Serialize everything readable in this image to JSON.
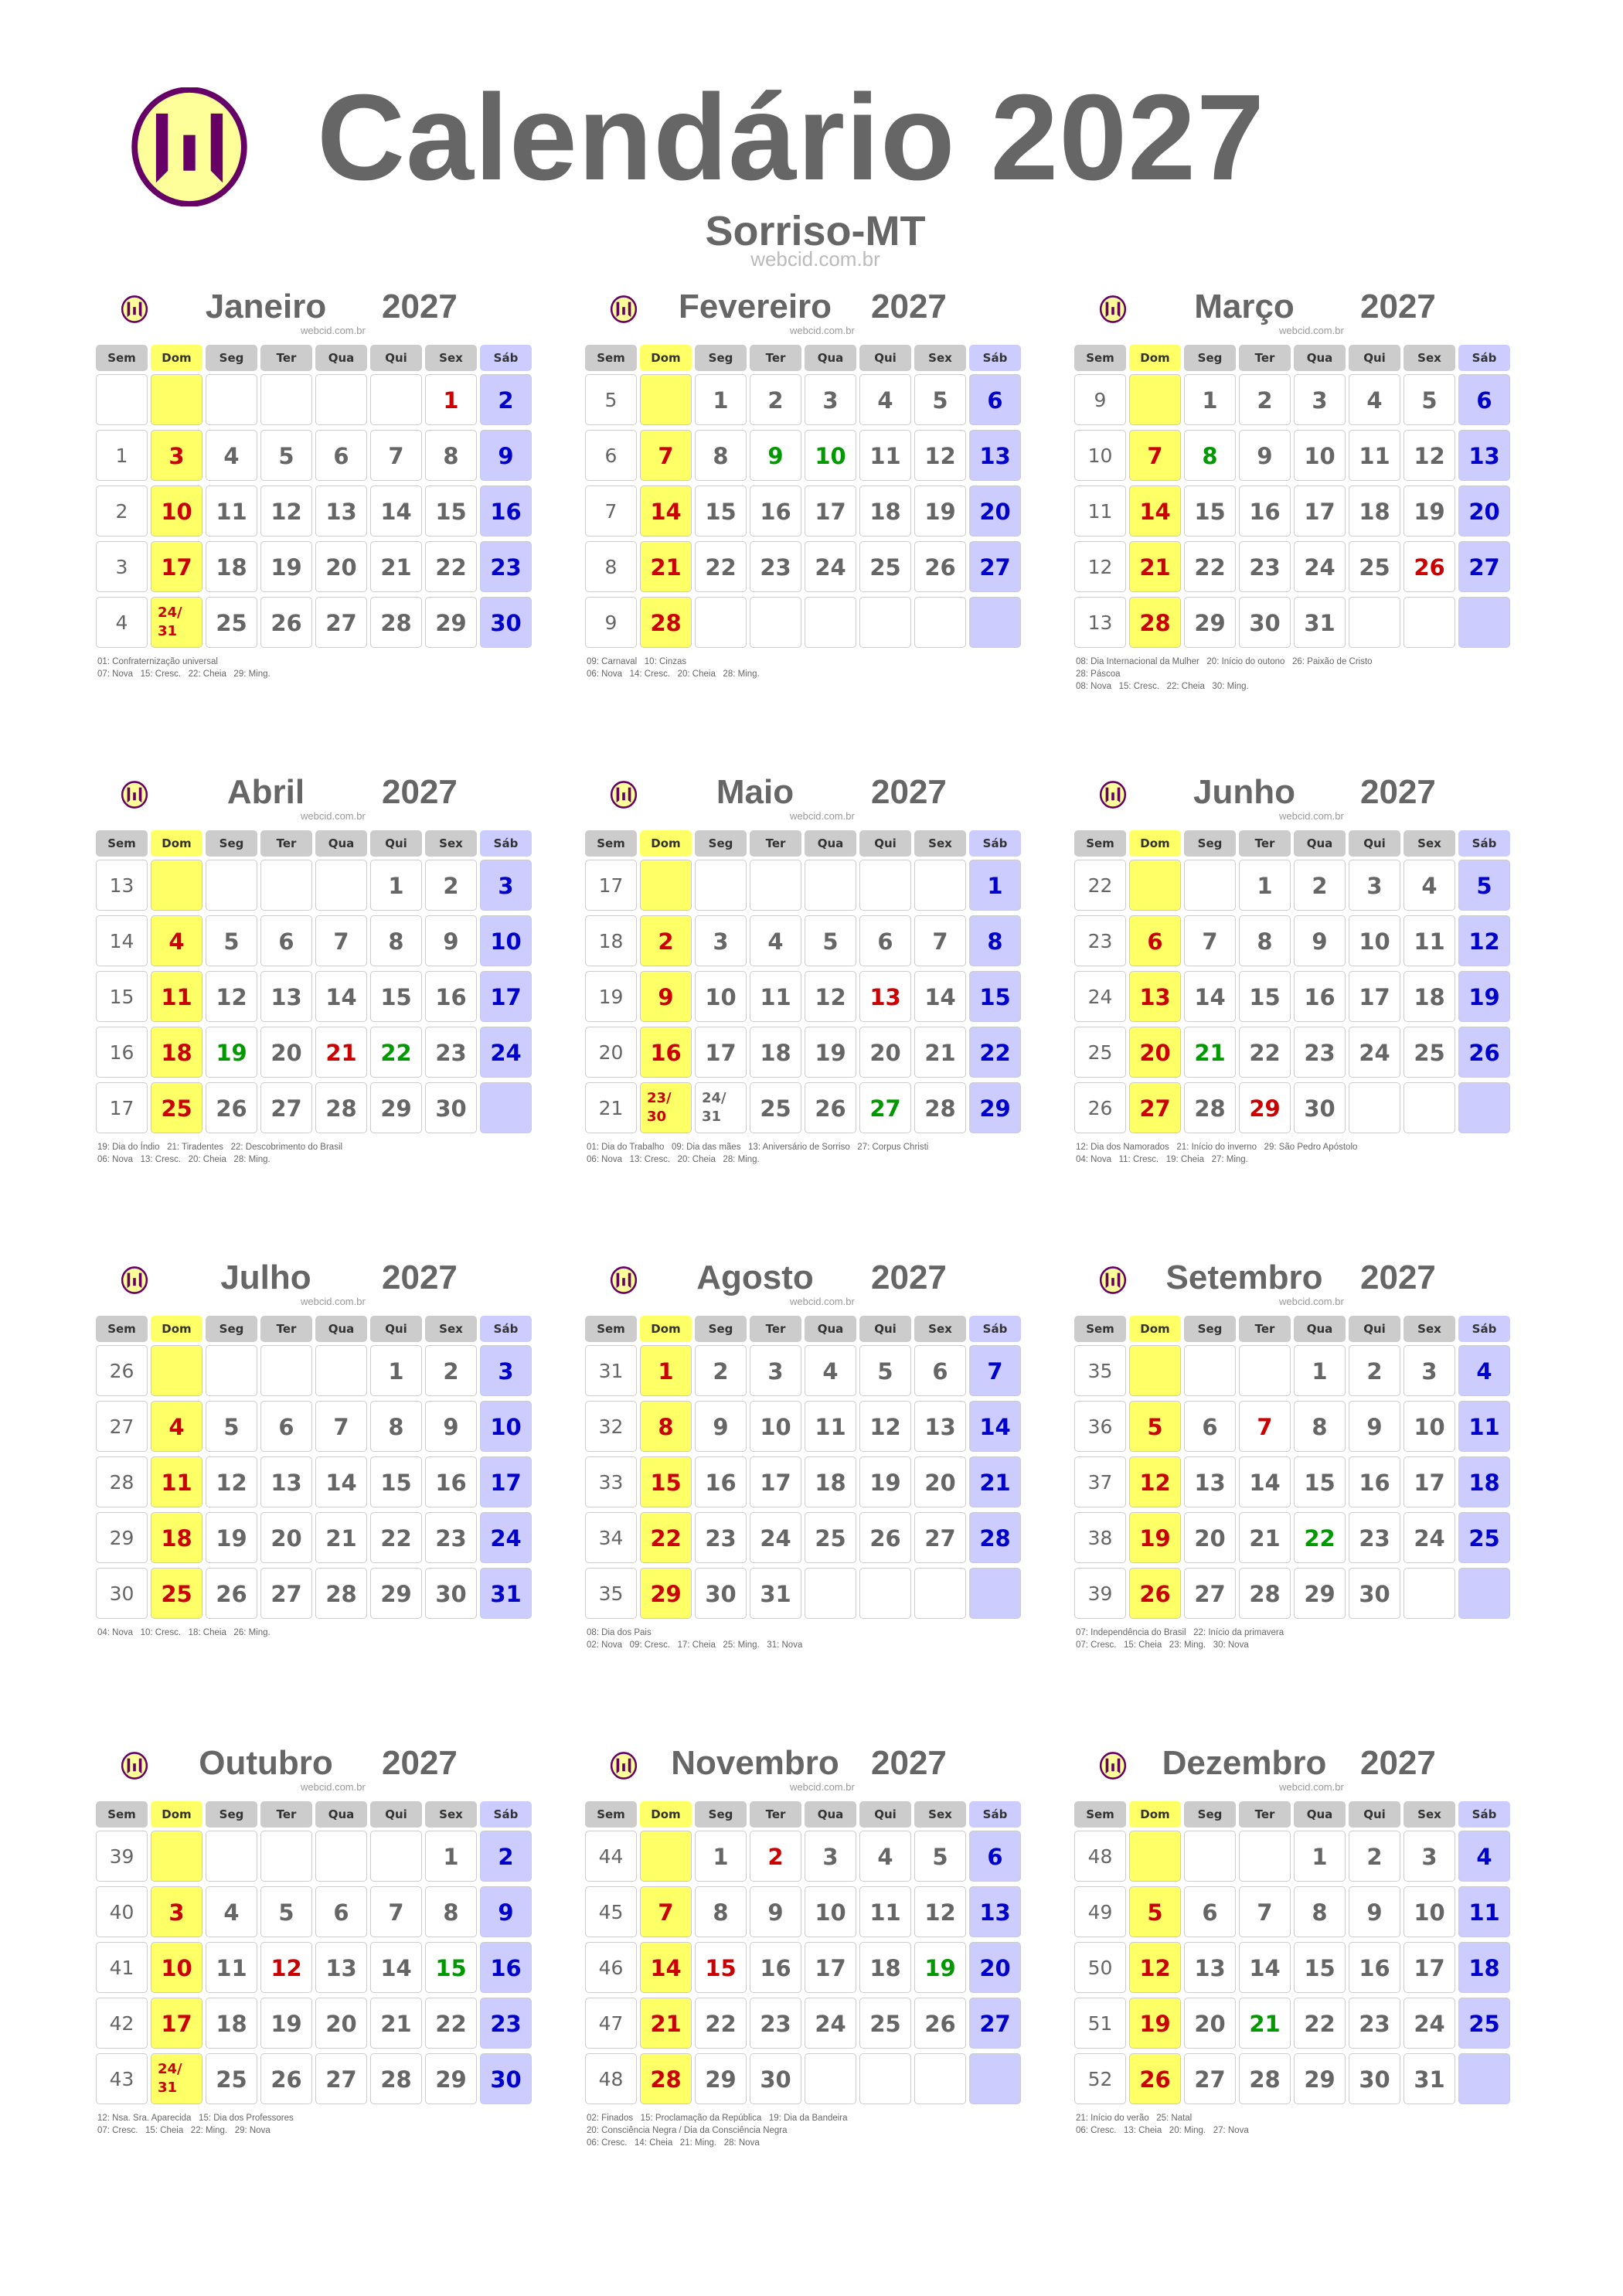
{
  "header": {
    "title": "Calendário 2027",
    "city": "Sorriso-MT",
    "site": "webcid.com.br",
    "logo": "webcid-logo-icon"
  },
  "weekday_headers": [
    "Sem",
    "Dom",
    "Seg",
    "Ter",
    "Qua",
    "Qui",
    "Sex",
    "Sáb"
  ],
  "year": "2027",
  "month_site": "webcid.com.br",
  "colors": {
    "text": "#666666",
    "holiday": "#cc0000",
    "optional": "#009900",
    "saturday": "#0000cc",
    "sunday_bg": "#ffff66",
    "saturday_bg": "#ccccff",
    "header_bg": "#cccccc",
    "logo_fill": "#ffff99",
    "logo_purple": "#660066"
  },
  "months": [
    {
      "name": "Janeiro",
      "red": [
        "1"
      ],
      "green": [],
      "weeks": [
        {
          "w": "",
          "d": [
            "",
            "",
            "",
            "",
            "",
            "1",
            "2"
          ]
        },
        {
          "w": "1",
          "d": [
            "3",
            "4",
            "5",
            "6",
            "7",
            "8",
            "9"
          ]
        },
        {
          "w": "2",
          "d": [
            "10",
            "11",
            "12",
            "13",
            "14",
            "15",
            "16"
          ]
        },
        {
          "w": "3",
          "d": [
            "17",
            "18",
            "19",
            "20",
            "21",
            "22",
            "23"
          ]
        },
        {
          "w": "4",
          "d": [
            "24/31",
            "25",
            "26",
            "27",
            "28",
            "29",
            "30"
          ]
        }
      ],
      "notes": [
        "01: Confraternização universal",
        "07: Nova   15: Cresc.   22: Cheia   29: Ming."
      ]
    },
    {
      "name": "Fevereiro",
      "red": [],
      "green": [
        "9",
        "10"
      ],
      "weeks": [
        {
          "w": "5",
          "d": [
            "",
            "1",
            "2",
            "3",
            "4",
            "5",
            "6"
          ]
        },
        {
          "w": "6",
          "d": [
            "7",
            "8",
            "9",
            "10",
            "11",
            "12",
            "13"
          ]
        },
        {
          "w": "7",
          "d": [
            "14",
            "15",
            "16",
            "17",
            "18",
            "19",
            "20"
          ]
        },
        {
          "w": "8",
          "d": [
            "21",
            "22",
            "23",
            "24",
            "25",
            "26",
            "27"
          ]
        },
        {
          "w": "9",
          "d": [
            "28",
            "",
            "",
            "",
            "",
            "",
            ""
          ]
        }
      ],
      "notes": [
        "09: Carnaval   10: Cinzas",
        "06: Nova   14: Cresc.   20: Cheia   28: Ming."
      ]
    },
    {
      "name": "Março",
      "red": [
        "26"
      ],
      "green": [
        "8"
      ],
      "weeks": [
        {
          "w": "9",
          "d": [
            "",
            "1",
            "2",
            "3",
            "4",
            "5",
            "6"
          ]
        },
        {
          "w": "10",
          "d": [
            "7",
            "8",
            "9",
            "10",
            "11",
            "12",
            "13"
          ]
        },
        {
          "w": "11",
          "d": [
            "14",
            "15",
            "16",
            "17",
            "18",
            "19",
            "20"
          ]
        },
        {
          "w": "12",
          "d": [
            "21",
            "22",
            "23",
            "24",
            "25",
            "26",
            "27"
          ]
        },
        {
          "w": "13",
          "d": [
            "28",
            "29",
            "30",
            "31",
            "",
            "",
            ""
          ]
        }
      ],
      "notes": [
        "08: Dia Internacional da Mulher   20: Início do outono   26: Paixão de Cristo",
        "28: Páscoa",
        "08: Nova   15: Cresc.   22: Cheia   30: Ming."
      ]
    },
    {
      "name": "Abril",
      "red": [
        "21"
      ],
      "green": [
        "19",
        "22"
      ],
      "weeks": [
        {
          "w": "13",
          "d": [
            "",
            "",
            "",
            "",
            "1",
            "2",
            "3"
          ]
        },
        {
          "w": "14",
          "d": [
            "4",
            "5",
            "6",
            "7",
            "8",
            "9",
            "10"
          ]
        },
        {
          "w": "15",
          "d": [
            "11",
            "12",
            "13",
            "14",
            "15",
            "16",
            "17"
          ]
        },
        {
          "w": "16",
          "d": [
            "18",
            "19",
            "20",
            "21",
            "22",
            "23",
            "24"
          ]
        },
        {
          "w": "17",
          "d": [
            "25",
            "26",
            "27",
            "28",
            "29",
            "30",
            ""
          ]
        }
      ],
      "notes": [
        "19: Dia do Índio   21: Tiradentes   22: Descobrimento do Brasil",
        "06: Nova   13: Cresc.   20: Cheia   28: Ming."
      ]
    },
    {
      "name": "Maio",
      "red": [
        "13"
      ],
      "green": [
        "27"
      ],
      "weeks": [
        {
          "w": "17",
          "d": [
            "",
            "",
            "",
            "",
            "",
            "",
            "1"
          ]
        },
        {
          "w": "18",
          "d": [
            "2",
            "3",
            "4",
            "5",
            "6",
            "7",
            "8"
          ]
        },
        {
          "w": "19",
          "d": [
            "9",
            "10",
            "11",
            "12",
            "13",
            "14",
            "15"
          ]
        },
        {
          "w": "20",
          "d": [
            "16",
            "17",
            "18",
            "19",
            "20",
            "21",
            "22"
          ]
        },
        {
          "w": "21",
          "d": [
            "23/30",
            "24/31",
            "25",
            "26",
            "27",
            "28",
            "29"
          ]
        }
      ],
      "notes": [
        "01: Dia do Trabalho   09: Dia das mães   13: Aniversário de Sorriso   27: Corpus Christi",
        "06: Nova   13: Cresc.   20: Cheia   28: Ming."
      ]
    },
    {
      "name": "Junho",
      "red": [
        "29"
      ],
      "green": [
        "21"
      ],
      "weeks": [
        {
          "w": "22",
          "d": [
            "",
            "",
            "1",
            "2",
            "3",
            "4",
            "5"
          ]
        },
        {
          "w": "23",
          "d": [
            "6",
            "7",
            "8",
            "9",
            "10",
            "11",
            "12"
          ]
        },
        {
          "w": "24",
          "d": [
            "13",
            "14",
            "15",
            "16",
            "17",
            "18",
            "19"
          ]
        },
        {
          "w": "25",
          "d": [
            "20",
            "21",
            "22",
            "23",
            "24",
            "25",
            "26"
          ]
        },
        {
          "w": "26",
          "d": [
            "27",
            "28",
            "29",
            "30",
            "",
            "",
            ""
          ]
        }
      ],
      "notes": [
        "12: Dia dos Namorados   21: Início do inverno   29: São Pedro Apóstolo",
        "04: Nova   11: Cresc.   19: Cheia   27: Ming."
      ]
    },
    {
      "name": "Julho",
      "red": [],
      "green": [],
      "weeks": [
        {
          "w": "26",
          "d": [
            "",
            "",
            "",
            "",
            "1",
            "2",
            "3"
          ]
        },
        {
          "w": "27",
          "d": [
            "4",
            "5",
            "6",
            "7",
            "8",
            "9",
            "10"
          ]
        },
        {
          "w": "28",
          "d": [
            "11",
            "12",
            "13",
            "14",
            "15",
            "16",
            "17"
          ]
        },
        {
          "w": "29",
          "d": [
            "18",
            "19",
            "20",
            "21",
            "22",
            "23",
            "24"
          ]
        },
        {
          "w": "30",
          "d": [
            "25",
            "26",
            "27",
            "28",
            "29",
            "30",
            "31"
          ]
        }
      ],
      "notes": [
        "04: Nova   10: Cresc.   18: Cheia   26: Ming."
      ]
    },
    {
      "name": "Agosto",
      "red": [],
      "green": [],
      "weeks": [
        {
          "w": "31",
          "d": [
            "1",
            "2",
            "3",
            "4",
            "5",
            "6",
            "7"
          ]
        },
        {
          "w": "32",
          "d": [
            "8",
            "9",
            "10",
            "11",
            "12",
            "13",
            "14"
          ]
        },
        {
          "w": "33",
          "d": [
            "15",
            "16",
            "17",
            "18",
            "19",
            "20",
            "21"
          ]
        },
        {
          "w": "34",
          "d": [
            "22",
            "23",
            "24",
            "25",
            "26",
            "27",
            "28"
          ]
        },
        {
          "w": "35",
          "d": [
            "29",
            "30",
            "31",
            "",
            "",
            "",
            ""
          ]
        }
      ],
      "notes": [
        "08: Dia dos Pais",
        "02: Nova   09: Cresc.   17: Cheia   25: Ming.   31: Nova"
      ]
    },
    {
      "name": "Setembro",
      "red": [
        "7"
      ],
      "green": [
        "22"
      ],
      "weeks": [
        {
          "w": "35",
          "d": [
            "",
            "",
            "",
            "1",
            "2",
            "3",
            "4"
          ]
        },
        {
          "w": "36",
          "d": [
            "5",
            "6",
            "7",
            "8",
            "9",
            "10",
            "11"
          ]
        },
        {
          "w": "37",
          "d": [
            "12",
            "13",
            "14",
            "15",
            "16",
            "17",
            "18"
          ]
        },
        {
          "w": "38",
          "d": [
            "19",
            "20",
            "21",
            "22",
            "23",
            "24",
            "25"
          ]
        },
        {
          "w": "39",
          "d": [
            "26",
            "27",
            "28",
            "29",
            "30",
            "",
            ""
          ]
        }
      ],
      "notes": [
        "07: Independência do Brasil   22: Início da primavera",
        "07: Cresc.   15: Cheia   23: Ming.   30: Nova"
      ]
    },
    {
      "name": "Outubro",
      "red": [
        "12"
      ],
      "green": [
        "15"
      ],
      "weeks": [
        {
          "w": "39",
          "d": [
            "",
            "",
            "",
            "",
            "",
            "1",
            "2"
          ]
        },
        {
          "w": "40",
          "d": [
            "3",
            "4",
            "5",
            "6",
            "7",
            "8",
            "9"
          ]
        },
        {
          "w": "41",
          "d": [
            "10",
            "11",
            "12",
            "13",
            "14",
            "15",
            "16"
          ]
        },
        {
          "w": "42",
          "d": [
            "17",
            "18",
            "19",
            "20",
            "21",
            "22",
            "23"
          ]
        },
        {
          "w": "43",
          "d": [
            "24/31",
            "25",
            "26",
            "27",
            "28",
            "29",
            "30"
          ]
        }
      ],
      "notes": [
        "12: Nsa. Sra. Aparecida   15: Dia dos Professores",
        "07: Cresc.   15: Cheia   22: Ming.   29: Nova"
      ]
    },
    {
      "name": "Novembro",
      "red": [
        "2",
        "15"
      ],
      "green": [
        "19"
      ],
      "weeks": [
        {
          "w": "44",
          "d": [
            "",
            "1",
            "2",
            "3",
            "4",
            "5",
            "6"
          ]
        },
        {
          "w": "45",
          "d": [
            "7",
            "8",
            "9",
            "10",
            "11",
            "12",
            "13"
          ]
        },
        {
          "w": "46",
          "d": [
            "14",
            "15",
            "16",
            "17",
            "18",
            "19",
            "20"
          ]
        },
        {
          "w": "47",
          "d": [
            "21",
            "22",
            "23",
            "24",
            "25",
            "26",
            "27"
          ]
        },
        {
          "w": "48",
          "d": [
            "28",
            "29",
            "30",
            "",
            "",
            "",
            ""
          ]
        }
      ],
      "notes": [
        "02: Finados   15: Proclamação da República   19: Dia da Bandeira",
        "20: Consciência Negra / Dia da Consciência Negra",
        "06: Cresc.   14: Cheia   21: Ming.   28: Nova"
      ]
    },
    {
      "name": "Dezembro",
      "red": [],
      "green": [
        "21"
      ],
      "weeks": [
        {
          "w": "48",
          "d": [
            "",
            "",
            "",
            "1",
            "2",
            "3",
            "4"
          ]
        },
        {
          "w": "49",
          "d": [
            "5",
            "6",
            "7",
            "8",
            "9",
            "10",
            "11"
          ]
        },
        {
          "w": "50",
          "d": [
            "12",
            "13",
            "14",
            "15",
            "16",
            "17",
            "18"
          ]
        },
        {
          "w": "51",
          "d": [
            "19",
            "20",
            "21",
            "22",
            "23",
            "24",
            "25"
          ]
        },
        {
          "w": "52",
          "d": [
            "26",
            "27",
            "28",
            "29",
            "30",
            "31",
            ""
          ]
        }
      ],
      "notes": [
        "21: Início do verão   25: Natal",
        "06: Cresc.   13: Cheia   20: Ming.   27: Nova"
      ]
    }
  ]
}
